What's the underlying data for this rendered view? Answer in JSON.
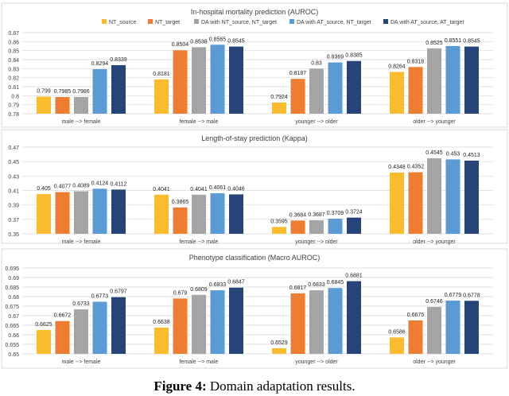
{
  "legend": [
    "NT_source",
    "NT_target",
    "DA with NT_source, NT_target",
    "DA with AT_source, NT_target",
    "DA with AT_source, AT_target"
  ],
  "colors": [
    "#FBBC2D",
    "#ED7D31",
    "#A5A5A5",
    "#5B9BD5",
    "#264478"
  ],
  "chart_data": [
    {
      "type": "bar",
      "title": "In-hospital mortality prediction (AUROC)",
      "categories": [
        "male --> female",
        "female --> male",
        "younger --> older",
        "older --> younger"
      ],
      "ylim": [
        0.78,
        0.87
      ],
      "yticks": [
        "0.78",
        "0.79",
        "0.8",
        "0.81",
        "0.82",
        "0.83",
        "0.84",
        "0.85",
        "0.86",
        "0.87"
      ],
      "legend": "top",
      "grid": true,
      "series": [
        {
          "name": "NT_source",
          "values": [
            0.799,
            0.8181,
            0.7924,
            0.8264
          ],
          "labels": [
            "0.799",
            "0.8181",
            "0.7924",
            "0.8264"
          ]
        },
        {
          "name": "NT_target",
          "values": [
            0.7985,
            0.8504,
            0.8187,
            0.8318
          ],
          "labels": [
            "0.7985",
            "0.8504",
            "0.8187",
            "0.8318"
          ]
        },
        {
          "name": "DA with NT_source, NT_target",
          "values": [
            0.7986,
            0.8538,
            0.83,
            0.8525
          ],
          "labels": [
            "0.7986",
            "0.8538",
            "0.83",
            "0.8525"
          ]
        },
        {
          "name": "DA with AT_source, NT_target",
          "values": [
            0.8294,
            0.8565,
            0.8369,
            0.8551
          ],
          "labels": [
            "0.8294",
            "0.8565",
            "0.8369",
            "0.8551"
          ]
        },
        {
          "name": "DA with AT_source, AT_target",
          "values": [
            0.8339,
            0.8545,
            0.8385,
            0.8545
          ],
          "labels": [
            "0.8339",
            "0.8545",
            "0.8385",
            "0.8545"
          ]
        }
      ]
    },
    {
      "type": "bar",
      "title": "Length-of-stay prediction (Kappa)",
      "categories": [
        "male --> female",
        "female --> male",
        "younger --> older",
        "older --> younger"
      ],
      "ylim": [
        0.35,
        0.47
      ],
      "yticks": [
        "0.35",
        "0.37",
        "0.39",
        "0.41",
        "0.43",
        "0.45",
        "0.47"
      ],
      "grid": true,
      "series": [
        {
          "name": "NT_source",
          "values": [
            0.405,
            0.4041,
            0.3595,
            0.4348
          ],
          "labels": [
            "0.405",
            "0.4041",
            "0.3595",
            "0.4348"
          ]
        },
        {
          "name": "NT_target",
          "values": [
            0.4077,
            0.3865,
            0.3684,
            0.4352
          ],
          "labels": [
            "0.4077",
            "0.3865",
            "0.3684",
            "0.4352"
          ]
        },
        {
          "name": "DA with NT_source, NT_target",
          "values": [
            0.4089,
            0.4041,
            0.3687,
            0.4545
          ],
          "labels": [
            "0.4089",
            "0.4041",
            "0.3687",
            "0.4545"
          ]
        },
        {
          "name": "DA with AT_source, NT_target",
          "values": [
            0.4124,
            0.4061,
            0.3709,
            0.453
          ],
          "labels": [
            "0.4124",
            "0.4061",
            "0.3709",
            "0.453"
          ]
        },
        {
          "name": "DA with AT_source, AT_target",
          "values": [
            0.4112,
            0.4046,
            0.3724,
            0.4513
          ],
          "labels": [
            "0.4112",
            "0.4046",
            "0.3724",
            "0.4513"
          ]
        }
      ]
    },
    {
      "type": "bar",
      "title": "Phenotype classification (Macro AUROC)",
      "categories": [
        "male --> female",
        "female --> male",
        "younger --> older",
        "older --> younger"
      ],
      "ylim": [
        0.65,
        0.695
      ],
      "yticks": [
        "0.65",
        "0.655",
        "0.66",
        "0.665",
        "0.67",
        "0.675",
        "0.68",
        "0.685",
        "0.69",
        "0.695"
      ],
      "grid": true,
      "series": [
        {
          "name": "NT_source",
          "values": [
            0.6625,
            0.6638,
            0.6529,
            0.6586
          ],
          "labels": [
            "0.6625",
            "0.6638",
            "0.6529",
            "0.6586"
          ]
        },
        {
          "name": "NT_target",
          "values": [
            0.6672,
            0.679,
            0.6817,
            0.6675
          ],
          "labels": [
            "0.6672",
            "0.679",
            "0.6817",
            "0.6675"
          ]
        },
        {
          "name": "DA with NT_source, NT_target",
          "values": [
            0.6733,
            0.6809,
            0.6833,
            0.6746
          ],
          "labels": [
            "0.6733",
            "0.6809",
            "0.6833",
            "0.6746"
          ]
        },
        {
          "name": "DA with AT_source, NT_target",
          "values": [
            0.6773,
            0.6833,
            0.6845,
            0.6779
          ],
          "labels": [
            "0.6773",
            "0.6833",
            "0.6845",
            "0.6779"
          ]
        },
        {
          "name": "DA with AT_source, AT_target",
          "values": [
            0.6797,
            0.6847,
            0.6881,
            0.6778
          ],
          "labels": [
            "0.6797",
            "0.6847",
            "0.6881",
            "0.6778"
          ]
        }
      ]
    }
  ],
  "caption": {
    "label": "Figure 4:",
    "text": " Domain adaptation results."
  }
}
